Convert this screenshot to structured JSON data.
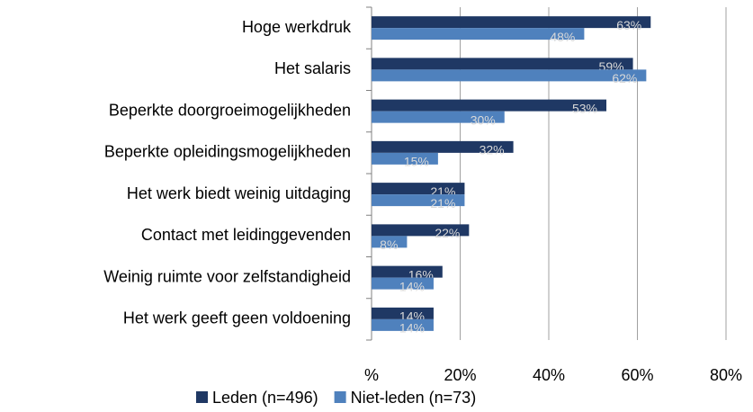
{
  "chart_data": {
    "type": "bar",
    "orientation": "horizontal",
    "categories": [
      "Hoge werkdruk",
      "Het salaris",
      "Beperkte doorgroeimogelijkheden",
      "Beperkte opleidingsmogelijkheden",
      "Het werk biedt weinig uitdaging",
      "Contact met leidinggevenden",
      "Weinig ruimte voor zelfstandigheid",
      "Het werk geeft geen voldoening"
    ],
    "series": [
      {
        "name": "Leden (n=496)",
        "color": "#1f3864",
        "values": [
          63,
          59,
          53,
          32,
          21,
          22,
          16,
          14
        ],
        "value_labels": [
          "63%",
          "59%",
          "53%",
          "32%",
          "21%",
          "22%",
          "16%",
          "14%"
        ]
      },
      {
        "name": "Niet-leden (n=73)",
        "color": "#4f81bd",
        "values": [
          48,
          62,
          30,
          15,
          21,
          8,
          14,
          14
        ],
        "value_labels": [
          "48%",
          "62%",
          "30%",
          "15%",
          "21%",
          "8%",
          "14%",
          "14%"
        ]
      }
    ],
    "xlim": [
      0,
      80
    ],
    "xticks": [
      {
        "value": 0,
        "label": "%"
      },
      {
        "value": 20,
        "label": "20%"
      },
      {
        "value": 40,
        "label": "40%"
      },
      {
        "value": 60,
        "label": "60%"
      },
      {
        "value": 80,
        "label": "80%"
      }
    ],
    "grid": true,
    "legend": "bottom"
  }
}
